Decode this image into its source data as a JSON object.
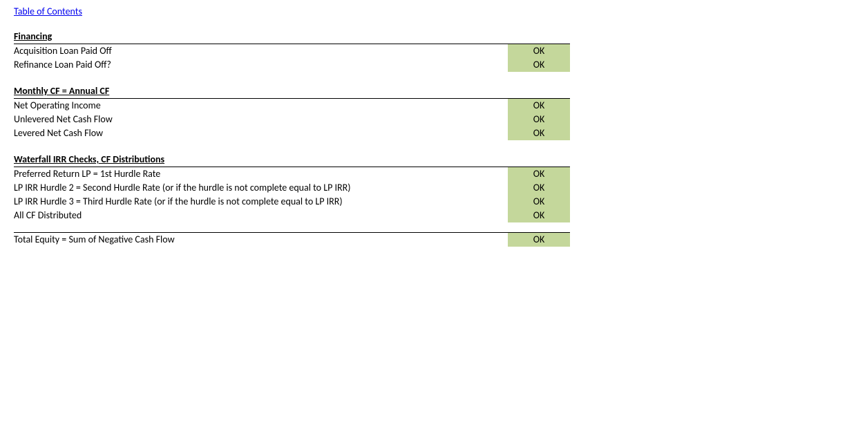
{
  "top_link": "Table of Contents",
  "status_color_ok": "#c4d79b",
  "sections": {
    "financing": {
      "title": "Financing",
      "rows": [
        {
          "label": "Acquisition Loan Paid Off",
          "status": "OK"
        },
        {
          "label": "Refinance Loan Paid Off?",
          "status": "OK"
        }
      ]
    },
    "monthly": {
      "title": "Monthly CF = Annual CF",
      "rows": [
        {
          "label": "Net Operating Income",
          "status": "OK"
        },
        {
          "label": "Unlevered Net Cash Flow",
          "status": "OK"
        },
        {
          "label": "Levered Net Cash Flow",
          "status": "OK"
        }
      ]
    },
    "waterfall": {
      "title": "Waterfall IRR Checks, CF Distributions",
      "rows": [
        {
          "label": "Preferred Return LP = 1st Hurdle Rate",
          "status": "OK"
        },
        {
          "label": "LP IRR Hurdle 2  = Second Hurdle Rate (or if the hurdle is not complete equal to LP IRR)",
          "status": "OK"
        },
        {
          "label": "LP IRR Hurdle 3 = Third Hurdle Rate (or if the hurdle is not complete equal to LP IRR)",
          "status": "OK"
        },
        {
          "label": "All CF Distributed",
          "status": "OK"
        }
      ]
    },
    "total_equity": {
      "rows": [
        {
          "label": "Total Equity = Sum of Negative Cash Flow",
          "status": "OK"
        }
      ]
    }
  }
}
